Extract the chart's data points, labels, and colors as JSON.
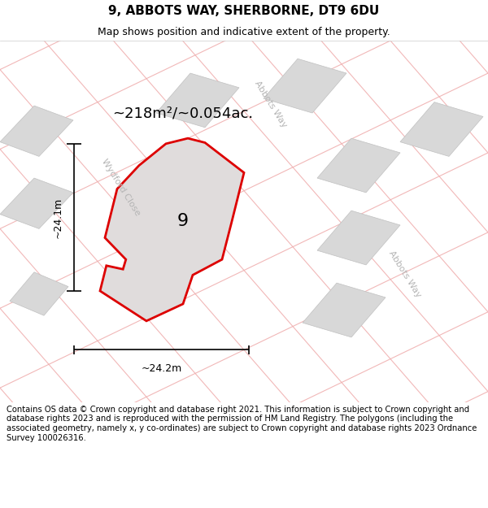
{
  "title": "9, ABBOTS WAY, SHERBORNE, DT9 6DU",
  "subtitle": "Map shows position and indicative extent of the property.",
  "area_text": "~218m²/~0.054ac.",
  "width_text": "~24.2m",
  "height_text": "~24.1m",
  "plot_number": "9",
  "footer_text": "Contains OS data © Crown copyright and database right 2021. This information is subject to Crown copyright and database rights 2023 and is reproduced with the permission of HM Land Registry. The polygons (including the associated geometry, namely x, y co-ordinates) are subject to Crown copyright and database rights 2023 Ordnance Survey 100026316.",
  "map_bg": "#f5f4f4",
  "parcel_bg": "#faf9f9",
  "road_color": "#f0efef",
  "building_color": "#d8d8d8",
  "plot_fill": "#e0dcdc",
  "plot_edge_color": "#dd0000",
  "pink_line_color": "#f0b0b0",
  "street_label_color": "#b5b5b5",
  "dim_color": "#000000",
  "title_fontsize": 11,
  "subtitle_fontsize": 9,
  "area_fontsize": 13,
  "plot_num_fontsize": 16,
  "street_fontsize": 8,
  "dim_fontsize": 9,
  "footer_fontsize": 7.2
}
